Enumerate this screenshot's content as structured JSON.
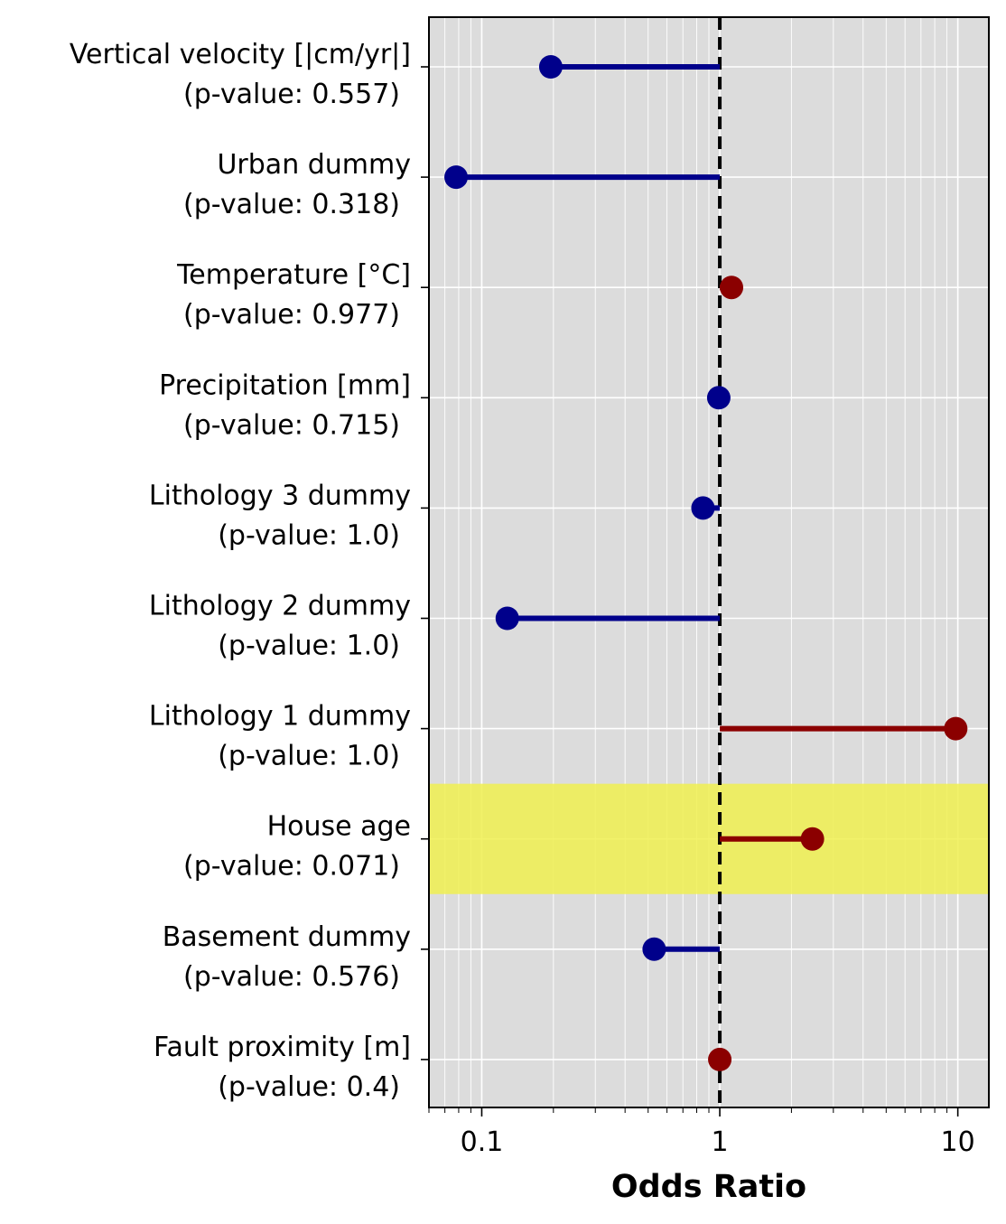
{
  "chart_data": {
    "type": "lollipop",
    "xlabel": "Odds Ratio",
    "xscale": "log",
    "xlim": [
      0.06,
      13.5
    ],
    "x_ticks": [
      {
        "value": 0.1,
        "label": "0.1"
      },
      {
        "value": 1,
        "label": "1"
      },
      {
        "value": 10,
        "label": "10"
      }
    ],
    "reference_line": 1,
    "grid": true,
    "background_color": "#dcdcdc",
    "colors": {
      "below_one": "#00008b",
      "above_one": "#8b0000",
      "highlight": "#f0f050",
      "reference_line": "#000000"
    },
    "rows": [
      {
        "name": "Vertical velocity [|cm/yr|]",
        "p_label": "(p-value: 0.557)",
        "odds_ratio": 0.195,
        "highlight": false
      },
      {
        "name": "Urban dummy",
        "p_label": "(p-value: 0.318)",
        "odds_ratio": 0.078,
        "highlight": false
      },
      {
        "name": "Temperature [°C]",
        "p_label": "(p-value: 0.977)",
        "odds_ratio": 1.12,
        "highlight": false
      },
      {
        "name": "Precipitation [mm]",
        "p_label": "(p-value: 0.715)",
        "odds_ratio": 0.99,
        "highlight": false
      },
      {
        "name": "Lithology 3 dummy",
        "p_label": "(p-value: 1.0)",
        "odds_ratio": 0.85,
        "highlight": false
      },
      {
        "name": "Lithology 2 dummy",
        "p_label": "(p-value: 1.0)",
        "odds_ratio": 0.128,
        "highlight": false
      },
      {
        "name": "Lithology 1 dummy",
        "p_label": "(p-value: 1.0)",
        "odds_ratio": 9.8,
        "highlight": false
      },
      {
        "name": "House age",
        "p_label": "(p-value: 0.071)",
        "odds_ratio": 2.45,
        "highlight": true
      },
      {
        "name": "Basement dummy",
        "p_label": "(p-value: 0.576)",
        "odds_ratio": 0.53,
        "highlight": false
      },
      {
        "name": "Fault proximity [m]",
        "p_label": "(p-value: 0.4)",
        "odds_ratio": 1.0,
        "highlight": false
      }
    ]
  }
}
